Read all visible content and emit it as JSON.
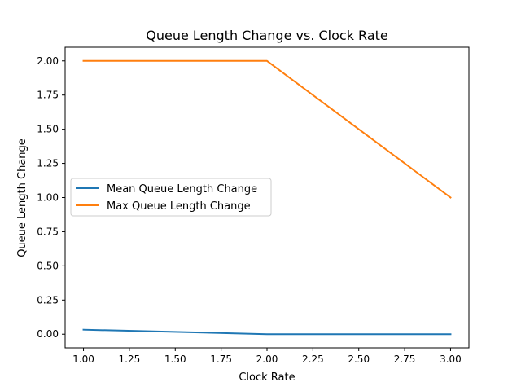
{
  "chart_data": {
    "type": "line",
    "title": "Queue Length Change vs. Clock Rate",
    "xlabel": "Clock Rate",
    "ylabel": "Queue Length Change",
    "x": [
      1.0,
      2.0,
      3.0
    ],
    "xlim": [
      0.9,
      3.1
    ],
    "ylim": [
      -0.1,
      2.1
    ],
    "xticks": [
      1.0,
      1.25,
      1.5,
      1.75,
      2.0,
      2.25,
      2.5,
      2.75,
      3.0
    ],
    "xtick_labels": [
      "1.00",
      "1.25",
      "1.50",
      "1.75",
      "2.00",
      "2.25",
      "2.50",
      "2.75",
      "3.00"
    ],
    "yticks": [
      0.0,
      0.25,
      0.5,
      0.75,
      1.0,
      1.25,
      1.5,
      1.75,
      2.0
    ],
    "ytick_labels": [
      "0.00",
      "0.25",
      "0.50",
      "0.75",
      "1.00",
      "1.25",
      "1.50",
      "1.75",
      "2.00"
    ],
    "series": [
      {
        "name": "Mean Queue Length Change",
        "values": [
          0.033,
          0.0,
          0.0
        ],
        "color": "#1f77b4"
      },
      {
        "name": "Max Queue Length Change",
        "values": [
          2.0,
          2.0,
          1.0
        ],
        "color": "#ff7f0e"
      }
    ],
    "grid": false,
    "legend_position": "center-left"
  }
}
